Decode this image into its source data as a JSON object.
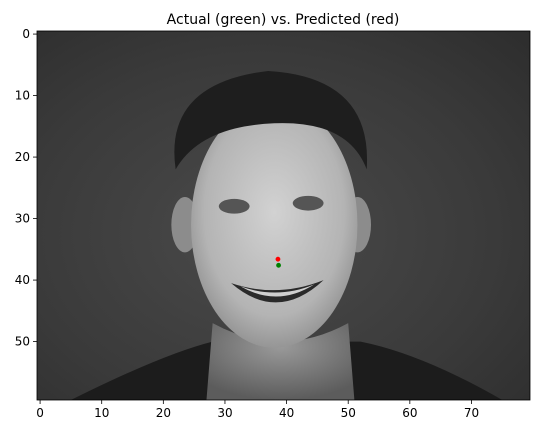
{
  "chart_data": {
    "type": "image",
    "title": "Actual (green) vs. Predicted (red)",
    "xlim": [
      -0.5,
      79.5
    ],
    "ylim": [
      59.5,
      -0.5
    ],
    "y_axis_inverted": true,
    "xticks": [
      0,
      10,
      20,
      30,
      40,
      50,
      60,
      70
    ],
    "yticks": [
      0,
      10,
      20,
      30,
      40,
      50
    ],
    "colormap": "gray",
    "grid": false,
    "legend": "none",
    "image_content": "grayscale portrait photo of a smiling young man, 80x60 pixels",
    "series": [
      {
        "name": "Actual",
        "color": "#008000",
        "points": [
          {
            "x": 38.7,
            "y": 37.6
          }
        ]
      },
      {
        "name": "Predicted",
        "color": "#ff0000",
        "points": [
          {
            "x": 38.6,
            "y": 36.6
          }
        ]
      }
    ]
  }
}
